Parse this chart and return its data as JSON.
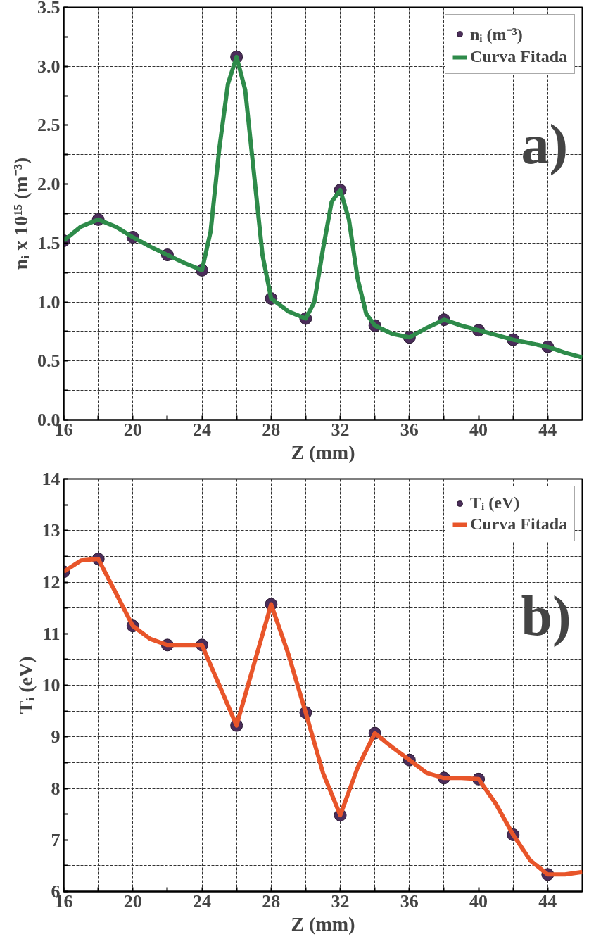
{
  "chart_data": [
    {
      "type": "line",
      "xlabel": "Z (mm)",
      "ylabel": "nᵢ x 10¹⁵ (m⁻³)",
      "annotations": [
        "a)"
      ],
      "xlim": [
        16,
        46
      ],
      "ylim": [
        0,
        3.5
      ],
      "xticks": [
        16,
        {
          "value": 18,
          "label": null
        },
        20,
        {
          "value": 22,
          "label": null
        },
        24,
        {
          "value": 26,
          "label": null
        },
        28,
        {
          "value": 30,
          "label": null
        },
        32,
        {
          "value": 34,
          "label": null
        },
        36,
        {
          "value": 38,
          "label": null
        },
        40,
        {
          "value": 42,
          "label": null
        },
        44
      ],
      "yticks": [
        {
          "value": 0,
          "label": "0.0"
        },
        {
          "value": 0.25,
          "label": null
        },
        0.5,
        {
          "value": 0.75,
          "label": null
        },
        {
          "value": 1,
          "label": "1.0"
        },
        {
          "value": 1.25,
          "label": null
        },
        1.5,
        {
          "value": 1.75,
          "label": null
        },
        {
          "value": 2,
          "label": "2.0"
        },
        {
          "value": 2.25,
          "label": null
        },
        2.5,
        {
          "value": 2.75,
          "label": null
        },
        {
          "value": 3,
          "label": "3.0"
        },
        {
          "value": 3.25,
          "label": null
        },
        3.5
      ],
      "grid": true,
      "legend": "top right",
      "series": [
        {
          "type": "scatter",
          "name": "nᵢ (m⁻³)",
          "color": "#4b2d5a",
          "marker": "circle",
          "x": [
            16,
            18,
            20,
            22,
            24,
            26,
            28,
            30,
            32,
            34,
            36,
            38,
            40,
            42,
            44
          ],
          "values": [
            1.52,
            1.7,
            1.55,
            1.4,
            1.27,
            3.08,
            1.03,
            0.86,
            1.95,
            0.8,
            0.7,
            0.85,
            0.76,
            0.68,
            0.62
          ]
        },
        {
          "name": "Curva Fitada",
          "color": "#2e8b4a",
          "line_style": "solid",
          "x": [
            16,
            17,
            18,
            19,
            20,
            21,
            22,
            23,
            24,
            24.5,
            25,
            25.5,
            26,
            26.5,
            27,
            27.5,
            28,
            29,
            30,
            30.5,
            31,
            31.5,
            32,
            32.5,
            33,
            33.5,
            34,
            35,
            36,
            37,
            38,
            39,
            40,
            41,
            42,
            43,
            44,
            45,
            46
          ],
          "values": [
            1.52,
            1.64,
            1.7,
            1.64,
            1.55,
            1.47,
            1.4,
            1.33,
            1.27,
            1.6,
            2.3,
            2.85,
            3.08,
            2.8,
            2.1,
            1.4,
            1.03,
            0.92,
            0.86,
            1.0,
            1.45,
            1.85,
            1.95,
            1.7,
            1.2,
            0.9,
            0.8,
            0.73,
            0.7,
            0.78,
            0.85,
            0.8,
            0.76,
            0.72,
            0.68,
            0.65,
            0.62,
            0.57,
            0.53
          ]
        }
      ]
    },
    {
      "type": "line",
      "xlabel": "Z (mm)",
      "ylabel": "Tᵢ (eV)",
      "annotations": [
        "b)"
      ],
      "xlim": [
        16,
        46
      ],
      "ylim": [
        6,
        14
      ],
      "xticks": [
        16,
        {
          "value": 18,
          "label": null
        },
        20,
        {
          "value": 22,
          "label": null
        },
        24,
        {
          "value": 26,
          "label": null
        },
        28,
        {
          "value": 30,
          "label": null
        },
        32,
        {
          "value": 34,
          "label": null
        },
        36,
        {
          "value": 38,
          "label": null
        },
        40,
        {
          "value": 42,
          "label": null
        },
        44
      ],
      "yticks": [
        6,
        {
          "value": 6.5,
          "label": null
        },
        7,
        {
          "value": 7.5,
          "label": null
        },
        8,
        {
          "value": 8.5,
          "label": null
        },
        9,
        {
          "value": 9.5,
          "label": null
        },
        10,
        {
          "value": 10.5,
          "label": null
        },
        11,
        {
          "value": 11.5,
          "label": null
        },
        12,
        {
          "value": 12.5,
          "label": null
        },
        13,
        {
          "value": 13.5,
          "label": null
        },
        14
      ],
      "grid": true,
      "legend": "top right",
      "series": [
        {
          "type": "scatter",
          "name": "Tᵢ (eV)",
          "color": "#4b2d5a",
          "marker": "circle",
          "x": [
            16,
            18,
            20,
            22,
            24,
            26,
            28,
            30,
            32,
            34,
            36,
            38,
            40,
            42,
            44
          ],
          "values": [
            12.2,
            12.45,
            11.15,
            10.78,
            10.78,
            9.22,
            11.57,
            9.47,
            7.48,
            9.07,
            8.55,
            8.2,
            8.18,
            7.1,
            6.33
          ]
        },
        {
          "name": "Curva Fitada",
          "color": "#e8552a",
          "line_style": "solid",
          "x": [
            16,
            17,
            18,
            19,
            20,
            21,
            22,
            23,
            24,
            25,
            26,
            27,
            28,
            29,
            30,
            31,
            32,
            33,
            34,
            35,
            36,
            37,
            38,
            39,
            40,
            41,
            42,
            43,
            44,
            45,
            46
          ],
          "values": [
            12.2,
            12.42,
            12.45,
            11.8,
            11.15,
            10.9,
            10.78,
            10.78,
            10.78,
            10.0,
            9.22,
            10.4,
            11.57,
            10.6,
            9.47,
            8.3,
            7.48,
            8.4,
            9.07,
            8.8,
            8.55,
            8.3,
            8.2,
            8.2,
            8.18,
            7.7,
            7.1,
            6.6,
            6.33,
            6.33,
            6.38
          ]
        }
      ]
    }
  ]
}
